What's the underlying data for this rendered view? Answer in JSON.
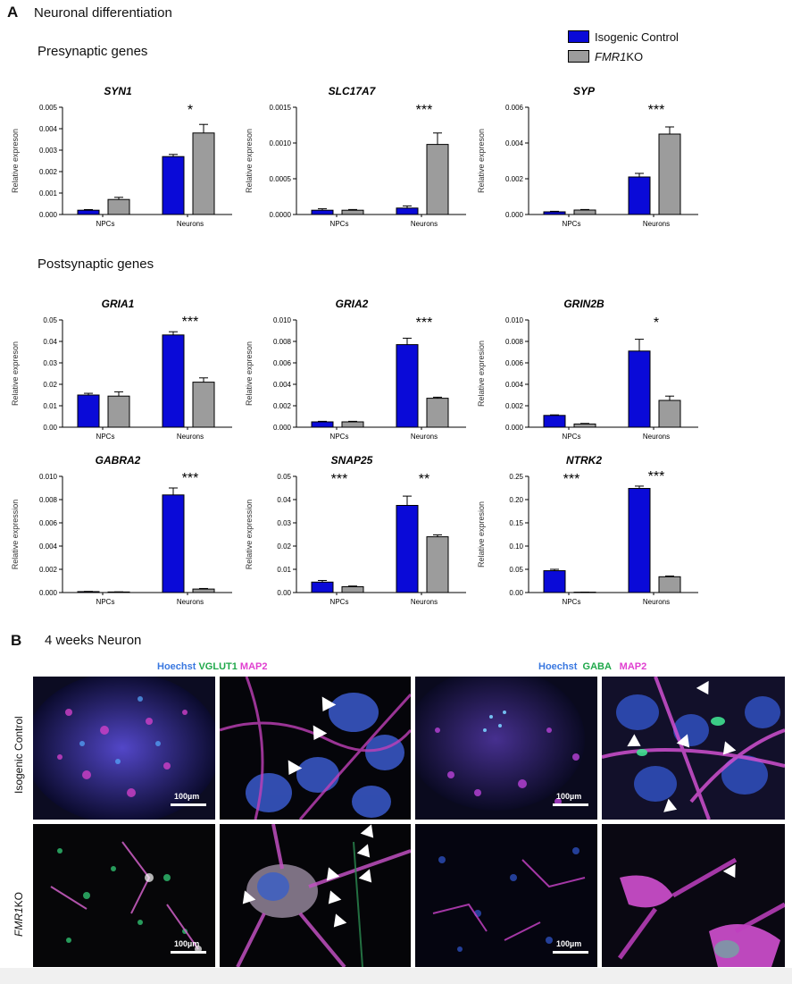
{
  "panel_a": {
    "letter": "A",
    "title": "Neuronal differentiation",
    "presynaptic_title": "Presynaptic genes",
    "postsynaptic_title": "Postsynaptic genes",
    "legend": [
      {
        "label": "Isogenic Control",
        "italic_part": "",
        "rest": "",
        "color": "#0a0ad8"
      },
      {
        "label": "",
        "italic_part": "FMR1",
        "rest": " KO",
        "color": "#9c9c9c"
      }
    ]
  },
  "chart_data": [
    {
      "type": "bar",
      "title": "SYN1",
      "ylabel": "Relative expreson",
      "categories": [
        "NPCs",
        "Neurons"
      ],
      "series": [
        {
          "name": "Isogenic Control",
          "values": [
            0.0002,
            0.0027
          ],
          "errors": [
            3e-05,
            0.0001
          ]
        },
        {
          "name": "FMR1 KO",
          "values": [
            0.0007,
            0.0038
          ],
          "errors": [
            0.0001,
            0.0004
          ]
        }
      ],
      "ylim": [
        0,
        0.005
      ],
      "ticks": [
        "0.000",
        "0.001",
        "0.002",
        "0.003",
        "0.004",
        "0.005"
      ],
      "tick_values": [
        0,
        0.001,
        0.002,
        0.003,
        0.004,
        0.005
      ],
      "significance": [
        "",
        "*"
      ]
    },
    {
      "type": "bar",
      "title": "SLC17A7",
      "ylabel": "Relative expreson",
      "categories": [
        "NPCs",
        "Neurons"
      ],
      "series": [
        {
          "name": "Isogenic Control",
          "values": [
            6e-05,
            9e-05
          ],
          "errors": [
            2e-05,
            3e-05
          ]
        },
        {
          "name": "FMR1 KO",
          "values": [
            6e-05,
            0.00098
          ],
          "errors": [
            1e-05,
            0.00016
          ]
        }
      ],
      "ylim": [
        0,
        0.0015
      ],
      "ticks": [
        "0.0000",
        "0.0005",
        "0.0010",
        "0.0015"
      ],
      "tick_values": [
        0,
        0.0005,
        0.001,
        0.0015
      ],
      "significance": [
        "",
        "***"
      ]
    },
    {
      "type": "bar",
      "title": "SYP",
      "ylabel": "Relative expreson",
      "categories": [
        "NPCs",
        "Neurons"
      ],
      "series": [
        {
          "name": "Isogenic Control",
          "values": [
            0.00015,
            0.0021
          ],
          "errors": [
            3e-05,
            0.0002
          ]
        },
        {
          "name": "FMR1 KO",
          "values": [
            0.00025,
            0.0045
          ],
          "errors": [
            3e-05,
            0.0004
          ]
        }
      ],
      "ylim": [
        0,
        0.006
      ],
      "ticks": [
        "0.000",
        "0.002",
        "0.004",
        "0.006"
      ],
      "tick_values": [
        0,
        0.002,
        0.004,
        0.006
      ],
      "significance": [
        "",
        "***"
      ]
    },
    {
      "type": "bar",
      "title": "GRIA1",
      "ylabel": "Relative expreson",
      "categories": [
        "NPCs",
        "Neurons"
      ],
      "series": [
        {
          "name": "Isogenic Control",
          "values": [
            0.015,
            0.043
          ],
          "errors": [
            0.0008,
            0.0015
          ]
        },
        {
          "name": "FMR1 KO",
          "values": [
            0.0145,
            0.021
          ],
          "errors": [
            0.002,
            0.002
          ]
        }
      ],
      "ylim": [
        0,
        0.05
      ],
      "ticks": [
        "0.00",
        "0.01",
        "0.02",
        "0.03",
        "0.04",
        "0.05"
      ],
      "tick_values": [
        0,
        0.01,
        0.02,
        0.03,
        0.04,
        0.05
      ],
      "significance": [
        "",
        "***"
      ]
    },
    {
      "type": "bar",
      "title": "GRIA2",
      "ylabel": "Relative expreson",
      "categories": [
        "NPCs",
        "Neurons"
      ],
      "series": [
        {
          "name": "Isogenic Control",
          "values": [
            0.0005,
            0.0077
          ],
          "errors": [
            5e-05,
            0.0006
          ]
        },
        {
          "name": "FMR1 KO",
          "values": [
            0.0005,
            0.0027
          ],
          "errors": [
            5e-05,
            0.0001
          ]
        }
      ],
      "ylim": [
        0,
        0.01
      ],
      "ticks": [
        "0.000",
        "0.002",
        "0.004",
        "0.006",
        "0.008",
        "0.010"
      ],
      "tick_values": [
        0,
        0.002,
        0.004,
        0.006,
        0.008,
        0.01
      ],
      "significance": [
        "",
        "***"
      ]
    },
    {
      "type": "bar",
      "title": "GRIN2B",
      "ylabel": "Relative expresion",
      "categories": [
        "NPCs",
        "Neurons"
      ],
      "series": [
        {
          "name": "Isogenic Control",
          "values": [
            0.0011,
            0.0071
          ],
          "errors": [
            5e-05,
            0.0011
          ]
        },
        {
          "name": "FMR1 KO",
          "values": [
            0.0003,
            0.0025
          ],
          "errors": [
            5e-05,
            0.0004
          ]
        }
      ],
      "ylim": [
        0,
        0.01
      ],
      "ticks": [
        "0.000",
        "0.002",
        "0.004",
        "0.006",
        "0.008",
        "0.010"
      ],
      "tick_values": [
        0,
        0.002,
        0.004,
        0.006,
        0.008,
        0.01
      ],
      "significance": [
        "",
        "*"
      ]
    },
    {
      "type": "bar",
      "title": "GABRA2",
      "ylabel": "Relative expression",
      "categories": [
        "NPCs",
        "Neurons"
      ],
      "series": [
        {
          "name": "Isogenic Control",
          "values": [
            8e-05,
            0.0084
          ],
          "errors": [
            2e-05,
            0.0006
          ]
        },
        {
          "name": "FMR1 KO",
          "values": [
            5e-05,
            0.0003
          ],
          "errors": [
            1e-05,
            5e-05
          ]
        }
      ],
      "ylim": [
        0,
        0.01
      ],
      "ticks": [
        "0.000",
        "0.002",
        "0.004",
        "0.006",
        "0.008",
        "0.010"
      ],
      "tick_values": [
        0,
        0.002,
        0.004,
        0.006,
        0.008,
        0.01
      ],
      "significance": [
        "",
        "***"
      ]
    },
    {
      "type": "bar",
      "title": "SNAP25",
      "ylabel": "Relative expression",
      "categories": [
        "NPCs",
        "Neurons"
      ],
      "series": [
        {
          "name": "Isogenic Control",
          "values": [
            0.0045,
            0.0375
          ],
          "errors": [
            0.0007,
            0.004
          ]
        },
        {
          "name": "FMR1 KO",
          "values": [
            0.0025,
            0.024
          ],
          "errors": [
            0.0003,
            0.0008
          ]
        }
      ],
      "ylim": [
        0,
        0.05
      ],
      "ticks": [
        "0.00",
        "0.01",
        "0.02",
        "0.03",
        "0.04",
        "0.05"
      ],
      "tick_values": [
        0,
        0.01,
        0.02,
        0.03,
        0.04,
        0.05
      ],
      "significance": [
        "***",
        "**"
      ]
    },
    {
      "type": "bar",
      "title": "NTRK2",
      "ylabel": "Relative expresion",
      "categories": [
        "NPCs",
        "Neurons"
      ],
      "series": [
        {
          "name": "Isogenic Control",
          "values": [
            0.047,
            0.224
          ],
          "errors": [
            0.003,
            0.005
          ]
        },
        {
          "name": "FMR1 KO",
          "values": [
            0.0008,
            0.034
          ],
          "errors": [
            0.0002,
            0.0015
          ]
        }
      ],
      "ylim": [
        0,
        0.25
      ],
      "ticks": [
        "0.00",
        "0.05",
        "0.10",
        "0.15",
        "0.20",
        "0.25"
      ],
      "tick_values": [
        0,
        0.05,
        0.1,
        0.15,
        0.2,
        0.25
      ],
      "significance": [
        "***",
        "***"
      ]
    }
  ],
  "panel_b": {
    "letter": "B",
    "title": "4 weeks Neuron",
    "stain_left": [
      {
        "text": "Hoechst",
        "color": "#3a78e0"
      },
      {
        "text": " VGLUT1",
        "color": "#1fa84a"
      },
      {
        "text": " MAP2",
        "color": "#e040d0"
      }
    ],
    "stain_right": [
      {
        "text": "Hoechst",
        "color": "#3a78e0"
      },
      {
        "text": "  GABA",
        "color": "#1fa84a"
      },
      {
        "text": "   MAP2",
        "color": "#e040d0"
      }
    ],
    "row_label_top": "Isogenic Control",
    "row_label_bottom_italic": "FMR1",
    "row_label_bottom_rest": "KO",
    "scale_bar": "100µm"
  }
}
